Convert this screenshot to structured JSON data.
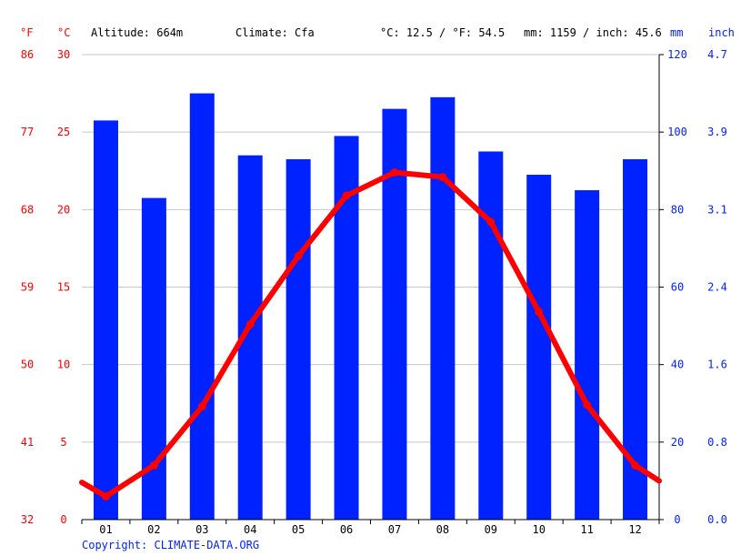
{
  "header": {
    "f_unit": "°F",
    "c_unit": "°C",
    "altitude": "Altitude: 664m",
    "climate": "Climate: Cfa",
    "temp_summary": "°C: 12.5 / °F: 54.5",
    "precip_summary": "mm: 1159 / inch: 45.6",
    "mm_unit": "mm",
    "inch_unit": "inch"
  },
  "copyright": "Copyright: CLIMATE-DATA.ORG",
  "colors": {
    "temperature": "#ff0000",
    "precipitation": "#0022ff",
    "grid": "#c8c8c8",
    "axis": "#000000"
  },
  "chart_data": {
    "type": "bar",
    "categories": [
      "01",
      "02",
      "03",
      "04",
      "05",
      "06",
      "07",
      "08",
      "09",
      "10",
      "11",
      "12"
    ],
    "series": [
      {
        "type": "bar",
        "axis": "right",
        "values": [
          103,
          83,
          110,
          94,
          93,
          99,
          106,
          109,
          95,
          89,
          85,
          93
        ]
      },
      {
        "type": "line",
        "axis": "left",
        "values": [
          1.5,
          3.5,
          7.3,
          12.6,
          17.0,
          20.9,
          22.4,
          22.1,
          19.2,
          13.4,
          7.4,
          3.5
        ],
        "edge_start": 2.4,
        "edge_end": 2.5
      }
    ],
    "y_left": {
      "ylim": [
        0,
        30
      ],
      "ticks": [
        0,
        5,
        10,
        15,
        20,
        25,
        30
      ],
      "fahrenheit_ticks": [
        "32",
        "41",
        "50",
        "59",
        "68",
        "77",
        "86"
      ]
    },
    "y_right": {
      "ylim": [
        0,
        120
      ],
      "ticks": [
        0,
        20,
        40,
        60,
        80,
        100,
        120
      ],
      "inch_ticks": [
        "0.0",
        "0.8",
        "1.6",
        "2.4",
        "3.1",
        "3.9",
        "4.7"
      ]
    },
    "grid": true
  }
}
